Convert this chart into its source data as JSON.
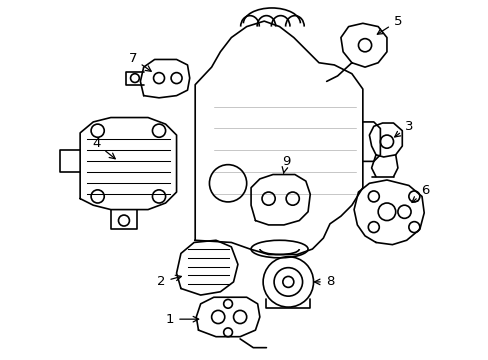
{
  "background_color": "#ffffff",
  "line_color": "#000000",
  "line_width": 1.2,
  "figure_width": 4.89,
  "figure_height": 3.6,
  "dpi": 100
}
